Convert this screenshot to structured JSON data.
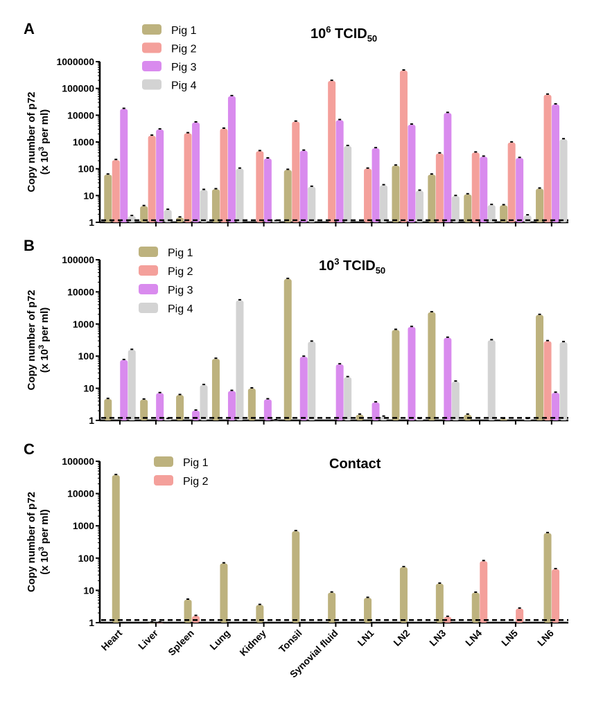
{
  "chart_data": [
    {
      "panel": "A",
      "type": "bar",
      "title": "10^6 TCID50",
      "title_parts": {
        "base": "10",
        "sup": "6",
        "main": " TCID",
        "sub": "50"
      },
      "xlabel": "",
      "ylabel_line1": "Copy number of p72",
      "ylabel_line2_parts": {
        "pre": "(x 10",
        "sup": "3",
        "post": " per ml)"
      },
      "yscale": "log",
      "ylim": [
        1,
        1000000
      ],
      "yticks": [
        "1",
        "10",
        "100",
        "1000",
        "10000",
        "100000",
        "1000000"
      ],
      "detection_limit": 1.2,
      "legend_placement": "top-left",
      "categories": [
        "Heart",
        "Liver",
        "Spleen",
        "Lung",
        "Kidney",
        "Tonsil",
        "Synovial fluid",
        "LN1",
        "LN2",
        "LN3",
        "LN4",
        "LN5",
        "LN6"
      ],
      "series": [
        {
          "name": "Pig 1",
          "color": "#BDB27E",
          "values": [
            60,
            4,
            1.5,
            17,
            null,
            90,
            null,
            null,
            130,
            60,
            11,
            4.3,
            18
          ]
        },
        {
          "name": "Pig 2",
          "color": "#F4A09B",
          "values": [
            210,
            1700,
            2100,
            3100,
            450,
            5700,
            190000,
            100,
            460000,
            370,
            400,
            950,
            58000
          ]
        },
        {
          "name": "Pig 3",
          "color": "#D98BEE",
          "values": [
            17000,
            2900,
            5300,
            51000,
            240,
            470,
            6500,
            580,
            4400,
            12000,
            280,
            250,
            25000
          ]
        },
        {
          "name": "Pig 4",
          "color": "#D3D3D3",
          "values": [
            1.7,
            2.9,
            16,
            100,
            1.1,
            21,
            700,
            24,
            15,
            9.5,
            4.4,
            1.8,
            1250
          ]
        }
      ]
    },
    {
      "panel": "B",
      "type": "bar",
      "title": "10^3 TCID50",
      "title_parts": {
        "base": "10",
        "sup": "3",
        "main": " TCID",
        "sub": "50"
      },
      "xlabel": "",
      "ylabel_line1": "Copy number of p72",
      "ylabel_line2_parts": {
        "pre": "(x 10",
        "sup": "3",
        "post": " per ml)"
      },
      "yscale": "log",
      "ylim": [
        1,
        100000
      ],
      "yticks": [
        "1",
        "10",
        "100",
        "1000",
        "10000",
        "100000"
      ],
      "detection_limit": 1.2,
      "legend_placement": "top-left",
      "categories": [
        "Heart",
        "Liver",
        "Spleen",
        "Lung",
        "Kidney",
        "Tonsil",
        "Synovial fluid",
        "LN1",
        "LN2",
        "LN3",
        "LN4",
        "LN5",
        "LN6"
      ],
      "series": [
        {
          "name": "Pig 1",
          "color": "#BDB27E",
          "values": [
            4.6,
            4.4,
            6.1,
            82,
            9.8,
            25000,
            null,
            1.5,
            650,
            2300,
            1.5,
            1.1,
            1900
          ]
        },
        {
          "name": "Pig 2",
          "color": "#F4A09B",
          "values": [
            null,
            null,
            null,
            null,
            null,
            null,
            null,
            null,
            null,
            null,
            null,
            null,
            290
          ]
        },
        {
          "name": "Pig 3",
          "color": "#D98BEE",
          "values": [
            75,
            7,
            2,
            8.2,
            4.5,
            95,
            55,
            3.6,
            800,
            370,
            null,
            null,
            7.2
          ]
        },
        {
          "name": "Pig 4",
          "color": "#D3D3D3",
          "values": [
            155,
            1.1,
            12.5,
            5400,
            1.0,
            280,
            22,
            1.3,
            1.1,
            16,
            310,
            1.1,
            270
          ]
        }
      ]
    },
    {
      "panel": "C",
      "type": "bar",
      "title": "Contact",
      "xlabel": "",
      "ylabel_line1": "Copy number of p72",
      "ylabel_line2_parts": {
        "pre": "(x 10",
        "sup": "3",
        "post": " per ml)"
      },
      "yscale": "log",
      "ylim": [
        1,
        100000
      ],
      "yticks": [
        "1",
        "10",
        "100",
        "1000",
        "10000",
        "100000"
      ],
      "detection_limit": 1.2,
      "legend_placement": "top-left",
      "categories": [
        "Heart",
        "Liver",
        "Spleen",
        "Lung",
        "Kidney",
        "Tonsil",
        "Synovial fluid",
        "LN1",
        "LN2",
        "LN3",
        "LN4",
        "LN5",
        "LN6"
      ],
      "series": [
        {
          "name": "Pig 1",
          "color": "#BDB27E",
          "values": [
            37000,
            1.0,
            5.1,
            68,
            3.5,
            680,
            8.5,
            5.8,
            52,
            16,
            8.4,
            null,
            590
          ]
        },
        {
          "name": "Pig 2",
          "color": "#F4A09B",
          "values": [
            null,
            1.0,
            1.6,
            null,
            null,
            null,
            null,
            null,
            null,
            1.5,
            80,
            2.7,
            45
          ]
        }
      ]
    }
  ]
}
